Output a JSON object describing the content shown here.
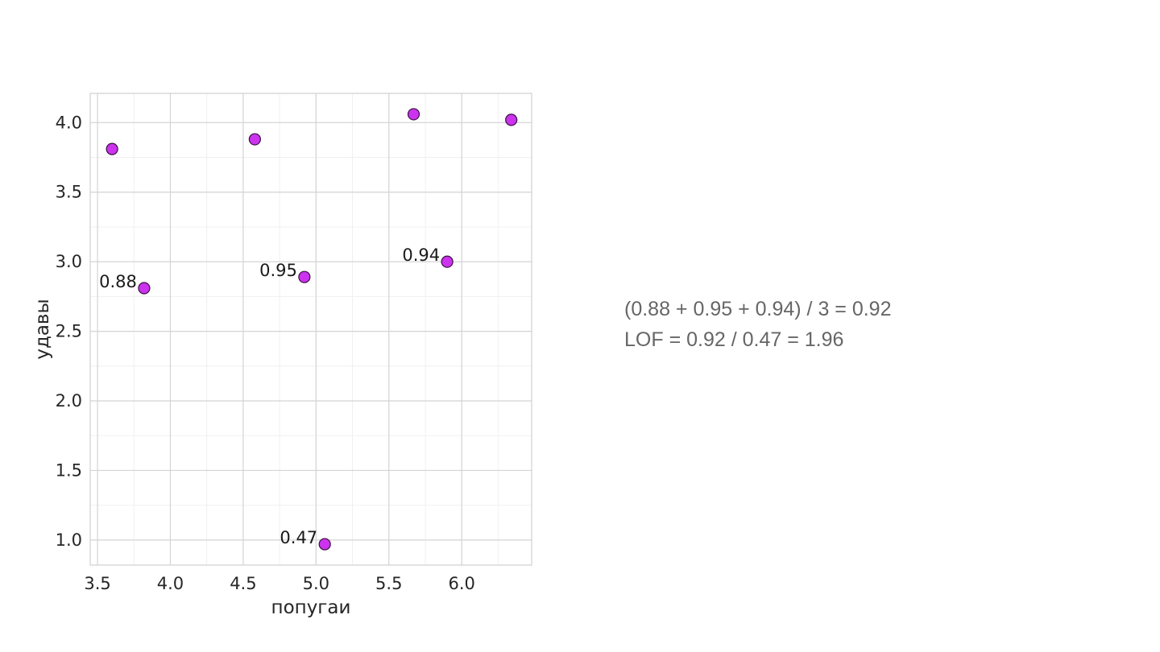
{
  "chart_data": {
    "type": "scatter",
    "xlabel": "попугаи",
    "ylabel": "удавы",
    "xlim": [
      3.45,
      6.48
    ],
    "ylim": [
      0.82,
      4.21
    ],
    "xticks": [
      "3.5",
      "4.0",
      "4.5",
      "5.0",
      "5.5",
      "6.0"
    ],
    "yticks": [
      "1.0",
      "1.5",
      "2.0",
      "2.5",
      "3.0",
      "3.5",
      "4.0"
    ],
    "grid": true,
    "marker_color": "#cc33ee",
    "marker_edge_color": "#3a1040",
    "points": [
      {
        "x": 3.6,
        "y": 3.81,
        "label": ""
      },
      {
        "x": 4.58,
        "y": 3.88,
        "label": ""
      },
      {
        "x": 5.67,
        "y": 4.06,
        "label": ""
      },
      {
        "x": 6.34,
        "y": 4.02,
        "label": ""
      },
      {
        "x": 3.82,
        "y": 2.81,
        "label": "0.88"
      },
      {
        "x": 4.92,
        "y": 2.89,
        "label": "0.95"
      },
      {
        "x": 5.9,
        "y": 3.0,
        "label": "0.94"
      },
      {
        "x": 5.06,
        "y": 0.97,
        "label": "0.47"
      }
    ]
  },
  "annotations": {
    "line1": "(0.88 + 0.95 + 0.94) / 3 = 0.92",
    "line2": "LOF = 0.92 / 0.47 = 1.96"
  }
}
